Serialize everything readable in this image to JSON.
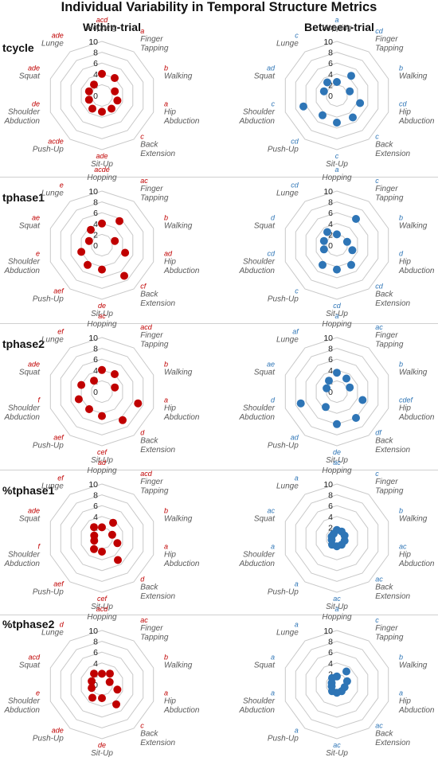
{
  "title": "Individual Variability in Temporal Structure Metrics",
  "columns": [
    "Within-trial",
    "Between-trial"
  ],
  "colors": {
    "within": "#c00000",
    "between": "#2e75b6",
    "grid": "#c8c8c8",
    "label": "#595959"
  },
  "chart_data": {
    "type": "radar",
    "axes": [
      "Hopping",
      "Finger Tapping",
      "Walking",
      "Hip Abduction",
      "Back Extension",
      "Sit-Up",
      "Push-Up",
      "Shoulder Abduction",
      "Squat",
      "Lunge"
    ],
    "rlim": [
      0,
      10
    ],
    "tick_labels": [
      "0",
      "2",
      "4",
      "6",
      "8",
      "10"
    ],
    "rows": [
      {
        "metric": "tcycle",
        "within": {
          "values": [
            4,
            4,
            2.5,
            3,
            3,
            3,
            3,
            2.5,
            2.5,
            2.5
          ],
          "letters": [
            "acd",
            "a",
            "b",
            "a",
            "c",
            "ade",
            "acde",
            "de",
            "ade",
            "ade"
          ]
        },
        "between": {
          "values": [
            2.5,
            4.5,
            2.5,
            4.5,
            5,
            5,
            4.5,
            6.5,
            2.5,
            3
          ],
          "letters": [
            "a",
            "cd",
            "b",
            "cd",
            "c",
            "c",
            "cd",
            "c",
            "ad",
            "c"
          ]
        }
      },
      {
        "metric": "tphase1",
        "within": {
          "values": [
            4,
            5.5,
            2.5,
            4.5,
            7,
            4.5,
            4.5,
            4,
            2.5,
            3.5
          ],
          "letters": [
            "acde",
            "ac",
            "b",
            "ad",
            "cf",
            "de",
            "aef",
            "e",
            "ae",
            "e"
          ]
        },
        "between": {
          "values": [
            2,
            6,
            2,
            3,
            4.5,
            4.5,
            4.5,
            2.5,
            2.5,
            3
          ],
          "letters": [
            "a",
            "c",
            "b",
            "d",
            "cd",
            "cd",
            "c",
            "cd",
            "d",
            "cd"
          ]
        }
      },
      {
        "metric": "tphase2",
        "within": {
          "values": [
            4,
            4,
            2.5,
            7,
            6.5,
            4.5,
            4,
            4.5,
            4,
            2.5
          ],
          "letters": [
            "ac",
            "acd",
            "b",
            "a",
            "d",
            "cef",
            "aef",
            "f",
            "ade",
            "ef"
          ]
        },
        "between": {
          "values": [
            3.5,
            3,
            2.5,
            5,
            6,
            6,
            3.5,
            7,
            2,
            2.5
          ],
          "letters": [
            "a",
            "ac",
            "b",
            "cdef",
            "df",
            "de",
            "ad",
            "d",
            "ae",
            "af"
          ]
        }
      },
      {
        "metric": "%tphase1",
        "within": {
          "values": [
            2,
            3.5,
            2,
            3,
            5,
            2.5,
            2.5,
            1.5,
            1.5,
            2.5
          ],
          "letters": [
            "ad",
            "acd",
            "b",
            "a",
            "d",
            "cef",
            "aef",
            "f",
            "ade",
            "ef"
          ]
        },
        "between": {
          "values": [
            1.5,
            1.5,
            1.5,
            1.5,
            1.5,
            1.5,
            1.5,
            1,
            1,
            1
          ],
          "letters": [
            "ac",
            "c",
            "b",
            "ac",
            "ac",
            "ac",
            "a",
            "a",
            "ac",
            "a"
          ]
        }
      },
      {
        "metric": "%tphase2",
        "within": {
          "values": [
            2,
            2.5,
            1.5,
            3,
            4.5,
            2.5,
            3,
            2,
            2,
            2.5
          ],
          "letters": [
            "acd",
            "ac",
            "b",
            "a",
            "c",
            "de",
            "ade",
            "e",
            "acd",
            "d"
          ]
        },
        "between": {
          "values": [
            1.5,
            3,
            2,
            1.5,
            1.5,
            1.5,
            1.5,
            1,
            1,
            1.5
          ],
          "letters": [
            "a",
            "c",
            "b",
            "a",
            "ac",
            "ac",
            "a",
            "a",
            "a",
            "a"
          ]
        }
      }
    ]
  }
}
